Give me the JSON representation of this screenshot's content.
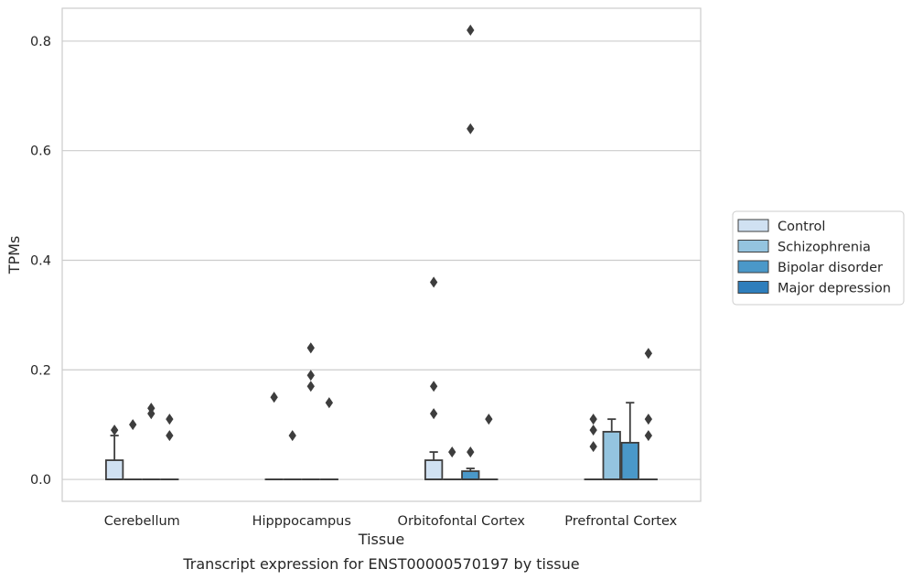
{
  "chart_data": {
    "type": "box",
    "xlabel": "Tissue",
    "ylabel": "TPMs",
    "caption": "Transcript expression for ENST00000570197 by tissue",
    "categories": [
      "Cerebellum",
      "Hipppocampus",
      "Orbitofontal Cortex",
      "Prefrontal Cortex"
    ],
    "ylim": [
      -0.04,
      0.86
    ],
    "yticks": [
      0.0,
      0.2,
      0.4,
      0.6,
      0.8
    ],
    "ytick_labels": [
      "0.0",
      "0.2",
      "0.4",
      "0.6",
      "0.8"
    ],
    "grid": "horizontal",
    "legend_position": "right",
    "series": [
      {
        "name": "Control",
        "color": "#d0e1f2",
        "boxes": [
          {
            "q1": 0.0,
            "median": 0.0,
            "q3": 0.035,
            "whisker_low": 0.0,
            "whisker_high": 0.08,
            "outliers": [
              0.09
            ]
          },
          {
            "q1": 0.0,
            "median": 0.0,
            "q3": 0.0,
            "whisker_low": 0.0,
            "whisker_high": 0.0,
            "outliers": [
              0.15
            ]
          },
          {
            "q1": 0.0,
            "median": 0.0,
            "q3": 0.035,
            "whisker_low": 0.0,
            "whisker_high": 0.05,
            "outliers": [
              0.36,
              0.17,
              0.12
            ]
          },
          {
            "q1": 0.0,
            "median": 0.0,
            "q3": 0.0,
            "whisker_low": 0.0,
            "whisker_high": 0.0,
            "outliers": [
              0.11,
              0.09,
              0.06
            ]
          }
        ]
      },
      {
        "name": "Schizophrenia",
        "color": "#94c4df",
        "boxes": [
          {
            "q1": 0.0,
            "median": 0.0,
            "q3": 0.0,
            "whisker_low": 0.0,
            "whisker_high": 0.0,
            "outliers": [
              0.1
            ]
          },
          {
            "q1": 0.0,
            "median": 0.0,
            "q3": 0.0,
            "whisker_low": 0.0,
            "whisker_high": 0.0,
            "outliers": [
              0.08
            ]
          },
          {
            "q1": 0.0,
            "median": 0.0,
            "q3": 0.0,
            "whisker_low": 0.0,
            "whisker_high": 0.0,
            "outliers": [
              0.05
            ]
          },
          {
            "q1": 0.0,
            "median": 0.0,
            "q3": 0.087,
            "whisker_low": 0.0,
            "whisker_high": 0.11,
            "outliers": []
          }
        ]
      },
      {
        "name": "Bipolar disorder",
        "color": "#4a98c9",
        "boxes": [
          {
            "q1": 0.0,
            "median": 0.0,
            "q3": 0.0,
            "whisker_low": 0.0,
            "whisker_high": 0.0,
            "outliers": [
              0.13,
              0.12
            ]
          },
          {
            "q1": 0.0,
            "median": 0.0,
            "q3": 0.0,
            "whisker_low": 0.0,
            "whisker_high": 0.0,
            "outliers": [
              0.24,
              0.19,
              0.17
            ]
          },
          {
            "q1": 0.0,
            "median": 0.0,
            "q3": 0.015,
            "whisker_low": 0.0,
            "whisker_high": 0.02,
            "outliers": [
              0.82,
              0.64,
              0.05
            ]
          },
          {
            "q1": 0.0,
            "median": 0.0,
            "q3": 0.067,
            "whisker_low": 0.0,
            "whisker_high": 0.14,
            "outliers": []
          }
        ]
      },
      {
        "name": "Major depression",
        "color": "#2e7ebc",
        "boxes": [
          {
            "q1": 0.0,
            "median": 0.0,
            "q3": 0.0,
            "whisker_low": 0.0,
            "whisker_high": 0.0,
            "outliers": [
              0.11,
              0.08
            ]
          },
          {
            "q1": 0.0,
            "median": 0.0,
            "q3": 0.0,
            "whisker_low": 0.0,
            "whisker_high": 0.0,
            "outliers": [
              0.14
            ]
          },
          {
            "q1": 0.0,
            "median": 0.0,
            "q3": 0.0,
            "whisker_low": 0.0,
            "whisker_high": 0.0,
            "outliers": [
              0.11
            ]
          },
          {
            "q1": 0.0,
            "median": 0.0,
            "q3": 0.0,
            "whisker_low": 0.0,
            "whisker_high": 0.0,
            "outliers": [
              0.23,
              0.11,
              0.08
            ]
          }
        ]
      }
    ]
  }
}
